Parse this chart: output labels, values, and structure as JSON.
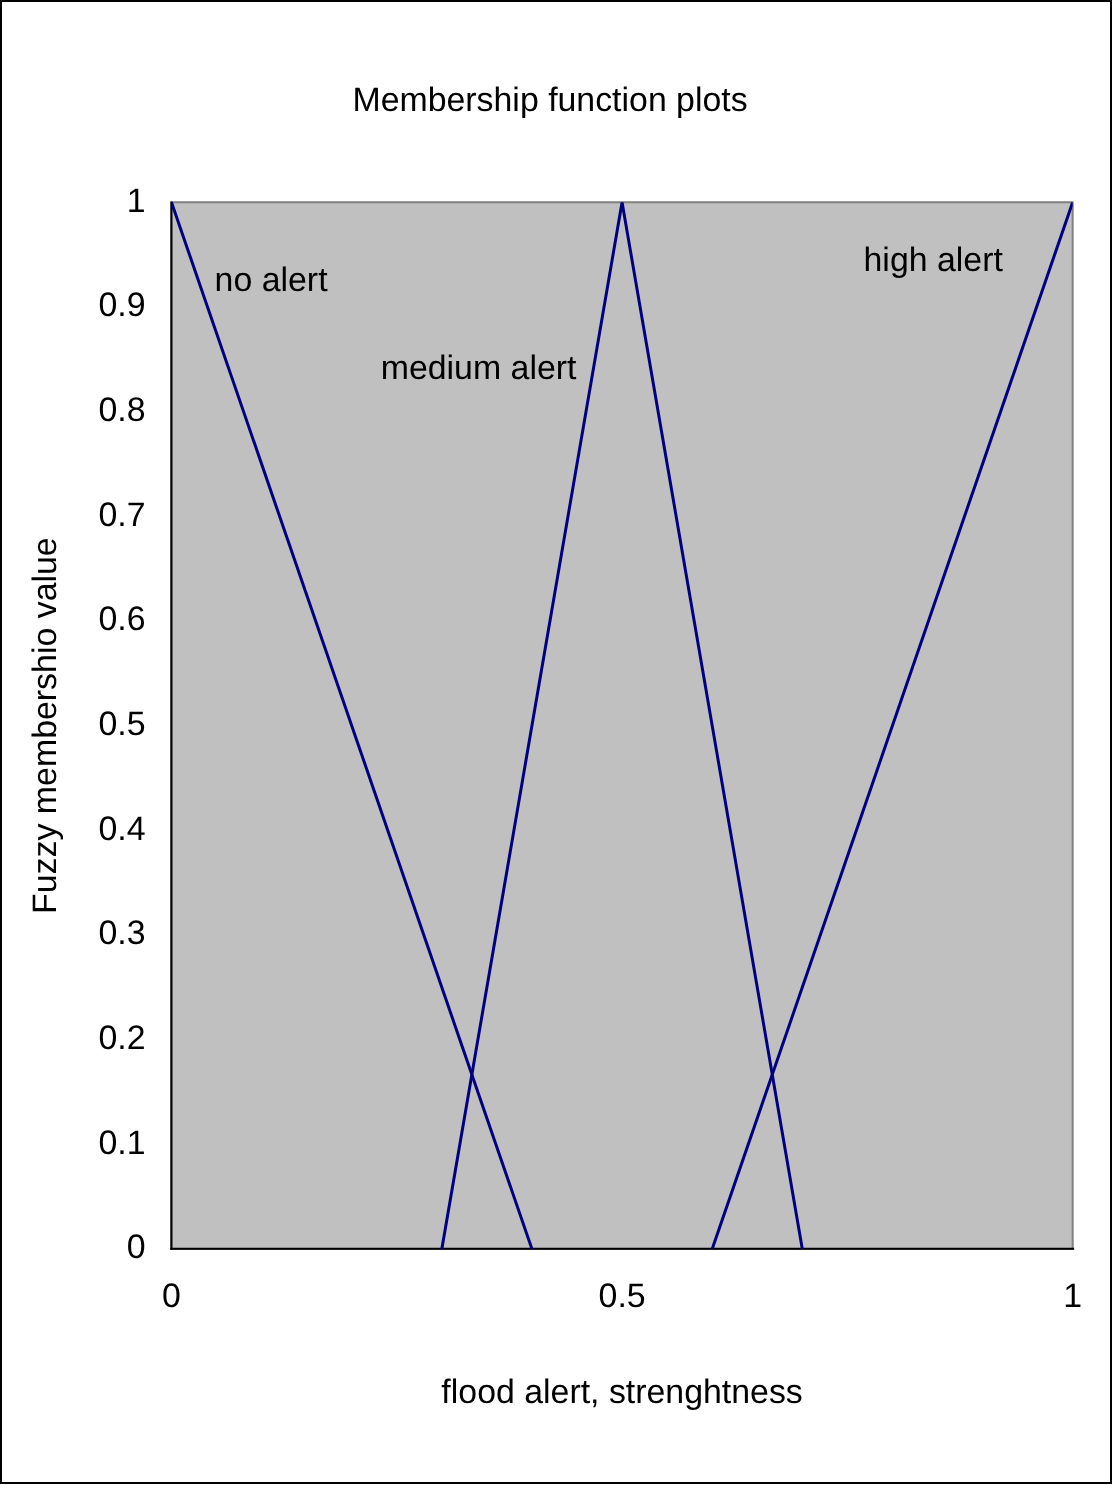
{
  "chart_data": {
    "type": "line",
    "title": "Membership function plots",
    "xlabel": "flood alert, strenghtness",
    "ylabel": "Fuzzy membershio value",
    "series": [
      {
        "name": "no alert",
        "color": "#000080",
        "x": [
          0,
          0.4
        ],
        "values": [
          1,
          0
        ]
      },
      {
        "name": "medium alert",
        "color": "#000080",
        "x": [
          0.3,
          0.5,
          0.7
        ],
        "values": [
          0,
          1,
          0
        ]
      },
      {
        "name": "high alert",
        "color": "#000080",
        "x": [
          0.6,
          1
        ],
        "values": [
          0,
          1
        ]
      }
    ],
    "xlim": [
      0,
      1
    ],
    "ylim": [
      0,
      1
    ],
    "xticks": [
      0,
      0.5,
      1
    ],
    "yticks": [
      0,
      0.1,
      0.2,
      0.3,
      0.4,
      0.5,
      0.6,
      0.7,
      0.8,
      0.9,
      1
    ],
    "grid": false,
    "legend": false,
    "marker": "none",
    "line_style": "solid"
  }
}
